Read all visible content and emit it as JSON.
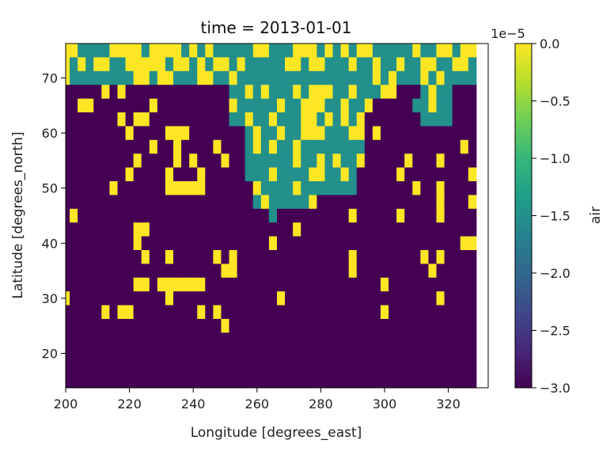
{
  "chart_data": {
    "type": "heatmap",
    "title": "time = 2013-01-01",
    "xlabel": "Longitude [degrees_east]",
    "ylabel": "Latitude [degrees_north]",
    "xlim": [
      200,
      332.5
    ],
    "ylim": [
      13.75,
      76.25
    ],
    "x_ticks": [
      "200",
      "220",
      "240",
      "260",
      "280",
      "300",
      "320"
    ],
    "x_tick_values": [
      200,
      220,
      240,
      260,
      280,
      300,
      320
    ],
    "y_ticks": [
      "20",
      "30",
      "40",
      "50",
      "60",
      "70"
    ],
    "y_tick_values": [
      20,
      30,
      40,
      50,
      60,
      70
    ],
    "colorbar": {
      "label": "air",
      "offset_text": "1e−5",
      "vmin": -3.0,
      "vmax": 0.0,
      "ticks": [
        "0.0",
        "−0.5",
        "−1.0",
        "−1.5",
        "−2.0",
        "−2.5",
        "−3.0"
      ],
      "tick_values": [
        0.0,
        -0.5,
        -1.0,
        -1.5,
        -2.0,
        -2.5,
        -3.0
      ],
      "colormap": "viridis",
      "colors": [
        "#440154",
        "#482878",
        "#3e4989",
        "#31688e",
        "#26828e",
        "#1f9e89",
        "#35b779",
        "#6ece58",
        "#b5de2b",
        "#fde725"
      ]
    },
    "value_scale": 1e-05,
    "cell_values_legend": {
      "Y": 0.0,
      "T": -1.5,
      "P": -3.0
    },
    "x_cell_centers_start": 200,
    "x_cell_step": 2.5,
    "y_cell_centers_top": 75,
    "y_cell_step": -2.5,
    "grid_rows": [
      "YYTTTTYYYYTYYYYTYTYTTTTTYYTTTYYYTYTYTYYTTTTTYTTYYTYY",
      "YTYTYYTTYYYYYTYYTYTYYTYTTTTTYYTYYTTTYTTYTTYTTYYTTYYT",
      "YTTTTTTTTYYTYYTTTYYTTYTTTTTTTTTTTTTTTTTYTYTTTYTYTTTT",
      "PPPPPYPYPPPPPPPPPPPPPTTYTYTTTYTYYYTTYTTTYYPPPTYTTPPP",
      "PPYYPPPPPPPYPPPPPPPPPYTTTTTYTTYYYTTYTTYPPPPPTTYTTPPP",
      "PPPPPPPYPYYPPPPPPPPPPTTYTTYTTTYYTYTYTYPPPPPPPTTTTPPP",
      "PPPPPPPPYPPPPYYYPPPPPPPTYTTYTTYYYTTTYYPYPPPPPPPPPPPP",
      "PPPPPPPPPPPYPPYPPPPYPPPTYTYTTYTTTTTTTTPPPPPPPPPPPPYP",
      "PPPPPPPPPYPPPPYPYPPPYPPTTTTTTYTTYTYTTYPPPPPYPPPYPPPP",
      "PPPPPPPPYPPPPYPPPYPPPPPTTTYTTTTYYTTYTPPPPPYPPPPPPPPY",
      "PPPPPPYPPPPPPYYYYYPPPPPPYTTTTYTTTTTTTPPPPPPPYPPYPPPP",
      "PPPPPPPPPPPPPPPPPPPPPPPPTYTTTTTYPPPPPPPPPPPPPPPYPPPY",
      "PYPPPPPPPPPPPPPPPPPPPPPPPPTPPPPPPPPPYPPPPPYPPPPYPPPP",
      "PPPPPPPPPYYPPPPPPPPPPPPPPPPPPYPPPPPPPPPPPPPPPPPPPPPP",
      "PPPPPPPPPYPPPPPPPPPPPPPPPPYPPPPPPPPPPPPPPPPPPPPPPPYY",
      "PPPPPPPPPPYPPYPPPPPYPYPPPPPPPPPPPPPPYPPPPPPPPYPYPPPP",
      "PPPPPPPPPPPPPPPPPPPPYYPPPPPPPPPPPPPPYPPPPPPPPPYPPPPP",
      "PPPPPPPPPYYPYYYYYYPPPPPPPPPPPPPPPPPPPPPPYPPPPPPPPPPP",
      "YPPPPPPPPPPPPYPPPPPPPPPPPPPYPPPPPPPPPPPPPPPPPPPYPPPP",
      "PPPPPYPYYPPPPPPPPYPYPPPPPPPPPPPPPPPPPPPPYPPPPPPPPPPP",
      "PPPPPPPPPPPPPPPPPPPPYPPPPPPPPPPPPPPPPPPPPPPPPPPPPPPP",
      "PPPPPPPPPPPPPPPPPPPPPPPPPPPPPPPPPPPPPPPPPPPPPPPPPPPP",
      "PPPPPPPPPPPPPPPPPPPPPPPPPPPPPPPPPPPPPPPPPPPPPPPPPPPP",
      "PPPPPPPPPPPPPPPPPPPPPPPPPPPPPPPPPPPPPPPPPPPPPPPPPPPP",
      "PPPPPPPPPPPPPPPPPPPPPPPPPPPPPPPPPPPPPPPPPPPPPPPPPPPP",
      "PPPPPPPPPPPPPPPPPPPPPPPPPPPPPPPPPPPPPPPPPPPPPPPPPPPP"
    ]
  }
}
